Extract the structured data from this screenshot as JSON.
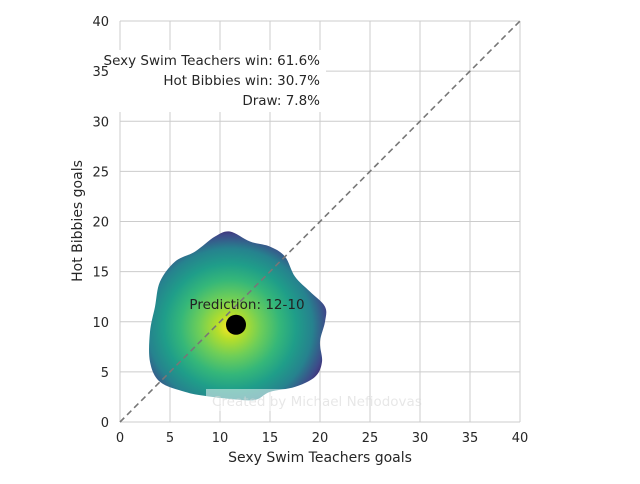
{
  "chart_data": {
    "type": "heatmap",
    "xlabel": "Sexy Swim Teachers goals",
    "ylabel": "Hot Bibbies goals",
    "xlim": [
      0,
      40
    ],
    "ylim": [
      0,
      40
    ],
    "xticks": [
      "0",
      "5",
      "10",
      "15",
      "20",
      "25",
      "30",
      "35",
      "40"
    ],
    "yticks": [
      "0",
      "5",
      "10",
      "15",
      "20",
      "25",
      "30",
      "35",
      "40"
    ],
    "grid": true,
    "colormap": "viridis",
    "density_center": [
      11,
      9.5
    ],
    "density_outline": [
      [
        11,
        19
      ],
      [
        13,
        18
      ],
      [
        15,
        17.5
      ],
      [
        16.5,
        16.5
      ],
      [
        17.5,
        14.5
      ],
      [
        19,
        13
      ],
      [
        20.5,
        11.5
      ],
      [
        20.5,
        10
      ],
      [
        20,
        8
      ],
      [
        20.2,
        6
      ],
      [
        19.5,
        4.5
      ],
      [
        17.5,
        3.5
      ],
      [
        15,
        3
      ],
      [
        13.5,
        2.2
      ],
      [
        11,
        2.3
      ],
      [
        8.5,
        2.6
      ],
      [
        6.5,
        3
      ],
      [
        4,
        4
      ],
      [
        3,
        6
      ],
      [
        3,
        9
      ],
      [
        3.5,
        11.5
      ],
      [
        4,
        14
      ],
      [
        5.5,
        16
      ],
      [
        7.5,
        17
      ],
      [
        9.5,
        18.5
      ]
    ],
    "prediction_point": {
      "x": 11.6,
      "y": 9.7
    },
    "diagonal_line": {
      "from": [
        0,
        0
      ],
      "to": [
        40,
        40
      ],
      "style": "dashed",
      "color": "#777777"
    },
    "annotations": {
      "home_win": "Sexy Swim Teachers win: 61.6%",
      "away_win": "Hot Bibbies win: 30.7%",
      "draw": "Draw: 7.8%",
      "prediction": "Prediction: 12-10",
      "watermark": "Created by Michael Nefiodovas"
    }
  }
}
